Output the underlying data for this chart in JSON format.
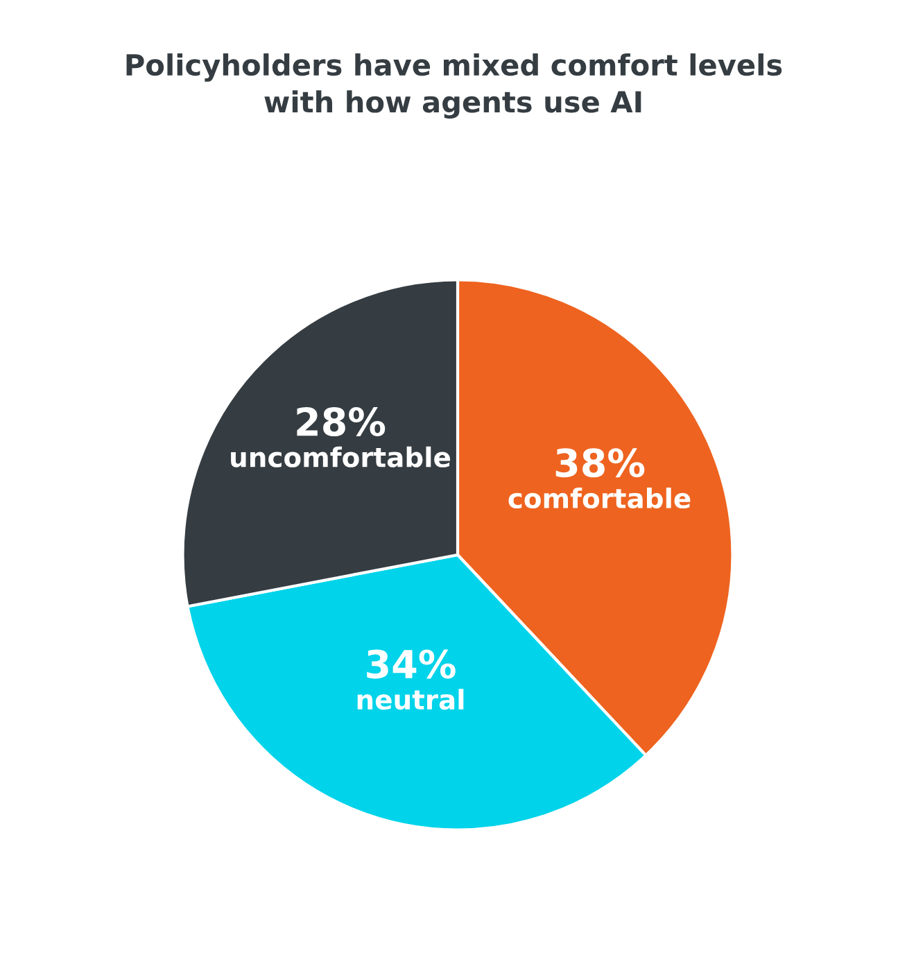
{
  "chart_data": {
    "type": "pie",
    "title": "Policyholders have mixed comfort levels\nwith how agents use AI",
    "categories": [
      "comfortable",
      "neutral",
      "uncomfortable"
    ],
    "values": [
      38,
      34,
      28
    ],
    "value_labels": [
      "38%",
      "34%",
      "28%"
    ],
    "colors": [
      "#ee631f",
      "#00d3ea",
      "#353d42"
    ],
    "legend": false
  }
}
